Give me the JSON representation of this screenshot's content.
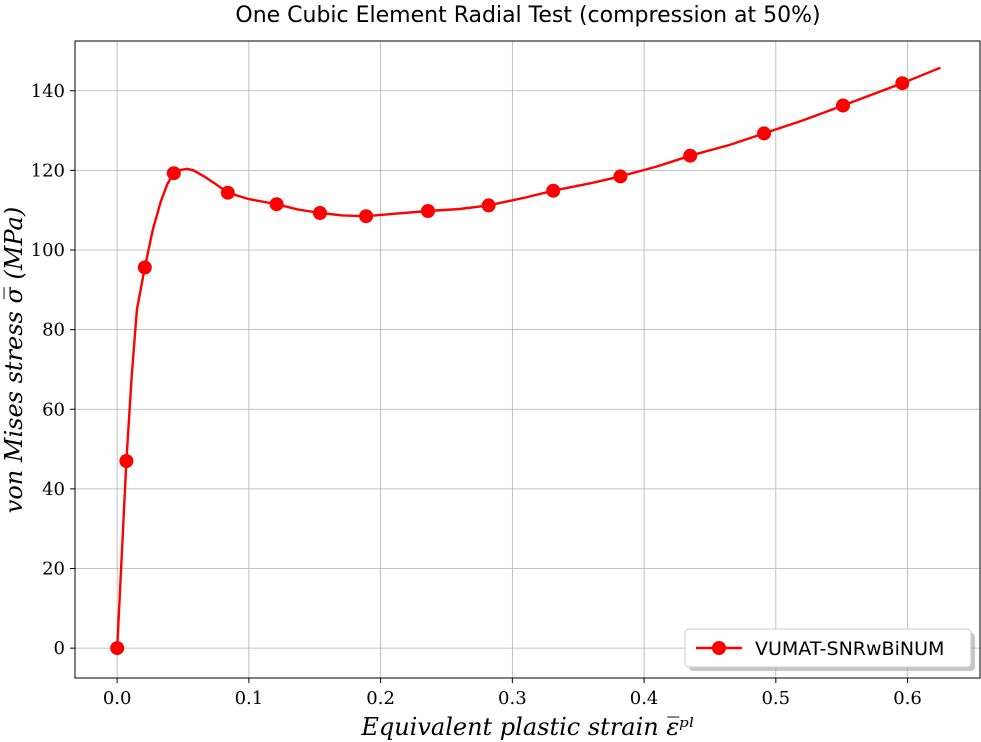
{
  "chart_data": {
    "type": "line",
    "title": "One Cubic Element Radial Test (compression at 50%)",
    "xlabel": "Equivalent plastic strain ε̅ᵖˡ",
    "ylabel": "von Mises stress σ̅ (MPa)",
    "xlim": [
      -0.032,
      0.655
    ],
    "ylim": [
      -7.5,
      152.5
    ],
    "xticks": [
      0.0,
      0.1,
      0.2,
      0.3,
      0.4,
      0.5,
      0.6
    ],
    "xtick_labels": [
      "0.0",
      "0.1",
      "0.2",
      "0.3",
      "0.4",
      "0.5",
      "0.6"
    ],
    "yticks": [
      0,
      20,
      40,
      60,
      80,
      100,
      120,
      140
    ],
    "ytick_labels": [
      "0",
      "20",
      "40",
      "60",
      "80",
      "100",
      "120",
      "140"
    ],
    "grid": true,
    "legend_position": "lower-right",
    "series": [
      {
        "name": "VUMAT-SNRwBiNUM",
        "color": "#ff0000",
        "line": {
          "x": [
            0.0,
            0.003,
            0.007,
            0.011,
            0.015,
            0.021,
            0.027,
            0.033,
            0.038,
            0.043,
            0.048,
            0.053,
            0.058,
            0.066,
            0.075,
            0.084,
            0.1,
            0.121,
            0.137,
            0.154,
            0.171,
            0.189,
            0.21,
            0.236,
            0.26,
            0.282,
            0.31,
            0.331,
            0.36,
            0.382,
            0.41,
            0.435,
            0.465,
            0.491,
            0.52,
            0.551,
            0.575,
            0.596,
            0.625
          ],
          "y": [
            0.0,
            20.0,
            47.0,
            68.0,
            85.0,
            95.6,
            105.0,
            112.0,
            116.5,
            119.3,
            120.1,
            120.4,
            120.0,
            118.5,
            116.5,
            114.4,
            112.8,
            111.5,
            110.2,
            109.3,
            108.7,
            108.5,
            109.1,
            109.8,
            110.3,
            111.2,
            113.2,
            114.9,
            116.8,
            118.5,
            121.0,
            123.7,
            126.4,
            129.3,
            132.5,
            136.3,
            139.3,
            141.9,
            145.8
          ]
        },
        "markers": {
          "x": [
            0.0,
            0.007,
            0.021,
            0.043,
            0.084,
            0.121,
            0.154,
            0.189,
            0.236,
            0.282,
            0.331,
            0.382,
            0.435,
            0.491,
            0.551,
            0.596
          ],
          "y": [
            0.0,
            47.0,
            95.6,
            119.3,
            114.4,
            111.5,
            109.3,
            108.5,
            109.8,
            111.2,
            114.9,
            118.5,
            123.7,
            129.3,
            136.3,
            141.9
          ]
        }
      }
    ]
  }
}
